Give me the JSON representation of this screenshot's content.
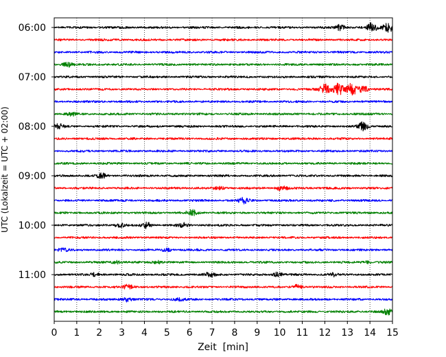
{
  "chart_data": {
    "type": "line",
    "title": "",
    "xlabel": "Zeit  [min]",
    "ylabel": "UTC (Lokalzeit = UTC + 02:00)",
    "xlim": [
      0,
      15
    ],
    "x_ticks": [
      0,
      1,
      2,
      3,
      4,
      5,
      6,
      7,
      8,
      9,
      10,
      11,
      12,
      13,
      14,
      15
    ],
    "x_tick_labels": [
      "0",
      "1",
      "2",
      "3",
      "4",
      "5",
      "6",
      "7",
      "8",
      "9",
      "10",
      "11",
      "12",
      "13",
      "14",
      "15"
    ],
    "y_tick_labels": [
      "06:00",
      "07:00",
      "08:00",
      "09:00",
      "10:00",
      "11:00"
    ],
    "grid": "vertical-dotted",
    "trace_interval_minutes": 15,
    "traces_per_hour": 4,
    "series_colors": [
      "#000000",
      "#ff0000",
      "#0000ff",
      "#008000"
    ],
    "traces": [
      {
        "start": "06:00",
        "color": "#000000",
        "events": [
          {
            "t": 12.7,
            "amp": 4
          },
          {
            "t": 14.1,
            "amp": 6
          },
          {
            "t": 14.8,
            "amp": 7
          }
        ]
      },
      {
        "start": "06:15",
        "color": "#ff0000",
        "events": []
      },
      {
        "start": "06:30",
        "color": "#0000ff",
        "events": []
      },
      {
        "start": "06:45",
        "color": "#008000",
        "events": [
          {
            "t": 0.6,
            "amp": 3
          }
        ]
      },
      {
        "start": "07:00",
        "color": "#000000",
        "events": []
      },
      {
        "start": "07:15",
        "color": "#ff0000",
        "events": [
          {
            "t": 12.0,
            "amp": 7
          },
          {
            "t": 12.6,
            "amp": 8
          },
          {
            "t": 13.2,
            "amp": 8
          },
          {
            "t": 13.7,
            "amp": 5
          }
        ]
      },
      {
        "start": "07:30",
        "color": "#0000ff",
        "events": []
      },
      {
        "start": "07:45",
        "color": "#008000",
        "events": [
          {
            "t": 0.8,
            "amp": 2
          }
        ]
      },
      {
        "start": "08:00",
        "color": "#000000",
        "events": [
          {
            "t": 0.2,
            "amp": 3
          },
          {
            "t": 13.7,
            "amp": 6
          }
        ]
      },
      {
        "start": "08:15",
        "color": "#ff0000",
        "events": []
      },
      {
        "start": "08:30",
        "color": "#0000ff",
        "events": []
      },
      {
        "start": "08:45",
        "color": "#008000",
        "events": []
      },
      {
        "start": "09:00",
        "color": "#000000",
        "events": [
          {
            "t": 2.1,
            "amp": 3
          }
        ]
      },
      {
        "start": "09:15",
        "color": "#ff0000",
        "events": [
          {
            "t": 7.3,
            "amp": 2
          },
          {
            "t": 10.1,
            "amp": 4
          }
        ]
      },
      {
        "start": "09:30",
        "color": "#0000ff",
        "events": [
          {
            "t": 8.4,
            "amp": 4
          }
        ]
      },
      {
        "start": "09:45",
        "color": "#008000",
        "events": [
          {
            "t": 6.1,
            "amp": 4
          }
        ]
      },
      {
        "start": "10:00",
        "color": "#000000",
        "events": [
          {
            "t": 2.9,
            "amp": 3
          },
          {
            "t": 4.1,
            "amp": 4
          },
          {
            "t": 5.7,
            "amp": 3
          }
        ]
      },
      {
        "start": "10:15",
        "color": "#ff0000",
        "events": []
      },
      {
        "start": "10:30",
        "color": "#0000ff",
        "events": [
          {
            "t": 0.4,
            "amp": 2
          },
          {
            "t": 5.0,
            "amp": 2
          }
        ]
      },
      {
        "start": "10:45",
        "color": "#008000",
        "events": [
          {
            "t": 2.8,
            "amp": 2
          },
          {
            "t": 4.6,
            "amp": 2
          },
          {
            "t": 13.9,
            "amp": 2
          }
        ]
      },
      {
        "start": "11:00",
        "color": "#000000",
        "events": [
          {
            "t": 1.8,
            "amp": 2
          },
          {
            "t": 6.9,
            "amp": 3
          },
          {
            "t": 9.9,
            "amp": 3
          },
          {
            "t": 12.4,
            "amp": 2
          }
        ]
      },
      {
        "start": "11:15",
        "color": "#ff0000",
        "events": [
          {
            "t": 3.3,
            "amp": 3
          },
          {
            "t": 10.8,
            "amp": 3
          }
        ]
      },
      {
        "start": "11:30",
        "color": "#0000ff",
        "events": [
          {
            "t": 3.2,
            "amp": 3
          },
          {
            "t": 5.5,
            "amp": 2
          }
        ]
      },
      {
        "start": "11:45",
        "color": "#008000",
        "events": [
          {
            "t": 14.8,
            "amp": 4
          }
        ]
      }
    ]
  }
}
